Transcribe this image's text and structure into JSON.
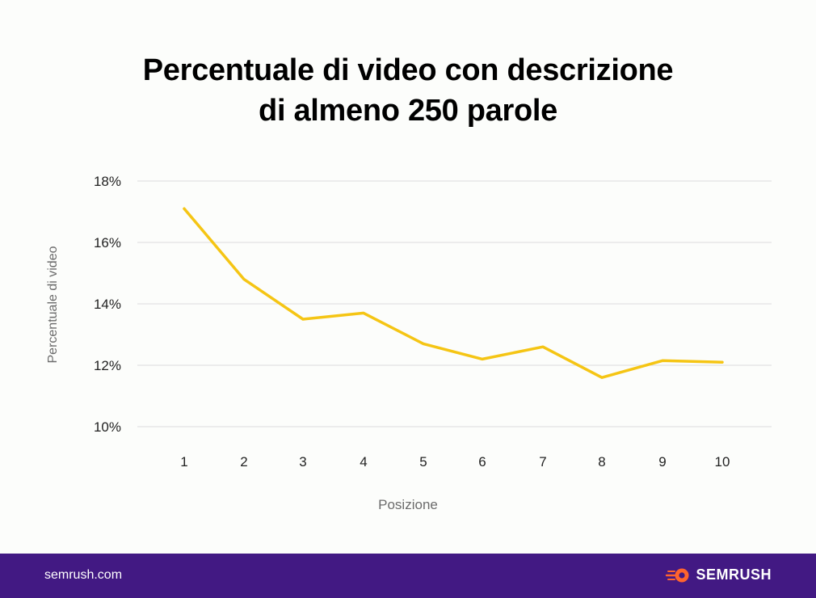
{
  "title_lines": [
    "Percentuale di video con descrizione",
    "di almeno 250 parole"
  ],
  "footer": {
    "url": "semrush.com",
    "brand": "SEMRUSH"
  },
  "colors": {
    "line": "#f5c514",
    "grid": "#dcdcdc",
    "footer_bg": "#421983",
    "brand_icon": "#ff642d"
  },
  "chart_data": {
    "type": "line",
    "xlabel": "Posizione",
    "ylabel": "Percentuale di video",
    "ylim": [
      10,
      18
    ],
    "yticks": [
      10,
      12,
      14,
      16,
      18
    ],
    "ytick_labels": [
      "10%",
      "12%",
      "14%",
      "16%",
      "18%"
    ],
    "categories": [
      "1",
      "2",
      "3",
      "4",
      "5",
      "6",
      "7",
      "8",
      "9",
      "10"
    ],
    "series": [
      {
        "name": "Percentuale di video",
        "values": [
          17.1,
          14.8,
          13.5,
          13.7,
          12.7,
          12.2,
          12.6,
          11.6,
          12.15,
          12.1
        ]
      }
    ],
    "grid": true
  }
}
